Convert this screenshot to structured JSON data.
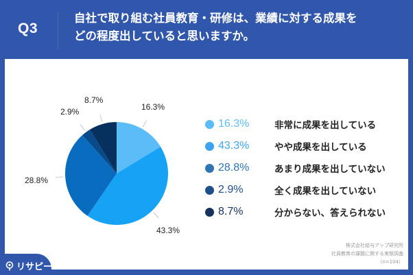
{
  "header": {
    "q_label": "Q3",
    "question_line1": "自社で取り組む社員教育・研修は、業績に対する成果を",
    "question_line2": "どの程度出していると思いますか。"
  },
  "colors": {
    "frame": "#3157ac",
    "card": "#ffffff"
  },
  "chart_data": {
    "type": "pie",
    "title": "自社で取り組む社員教育・研修は、業績に対する成果をどの程度出していると思いますか。",
    "categories": [
      "非常に成果を出している",
      "やや成果を出している",
      "あまり成果を出していない",
      "全く成果を出していない",
      "分からない、答えられない"
    ],
    "values": [
      16.3,
      43.3,
      28.8,
      2.9,
      8.7
    ],
    "labels": [
      "16.3%",
      "43.3%",
      "28.8%",
      "2.9%",
      "8.7%"
    ],
    "colors": [
      "#5bbcf8",
      "#16a3f6",
      "#0a6cbf",
      "#084a8a",
      "#06315f"
    ],
    "legend_colors": [
      "#5bbcf8",
      "#3ea3ef",
      "#2f74b5",
      "#1f4e8c",
      "#16325f"
    ],
    "start_angle_deg": -90,
    "direction": "clockwise",
    "legend_position": "right",
    "n": 104
  },
  "legend": [
    {
      "pct": "16.3%",
      "text": "非常に成果を出している"
    },
    {
      "pct": "43.3%",
      "text": "やや成果を出している"
    },
    {
      "pct": "28.8%",
      "text": "あまり成果を出していない"
    },
    {
      "pct": "2.9%",
      "text": "全く成果を出していない"
    },
    {
      "pct": "8.7%",
      "text": "分からない、答えられない"
    }
  ],
  "source": {
    "line1": "株式会社給与アップ研究所",
    "line2": "社員教育の課題に関する実態調査",
    "line3": "（n=104）"
  },
  "logo": {
    "text": "リサピー"
  }
}
